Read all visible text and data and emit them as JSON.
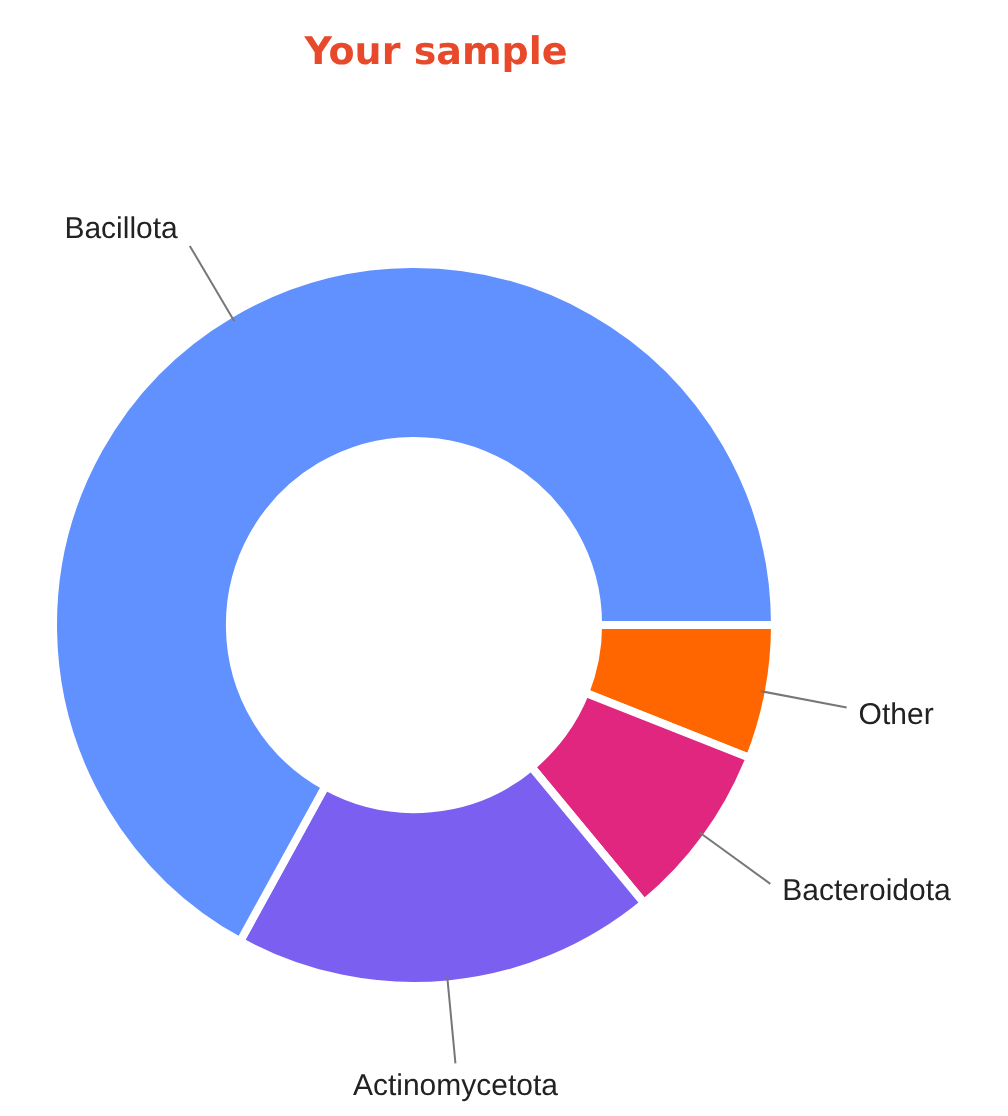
{
  "chart_data": {
    "type": "donut",
    "title": "Your sample",
    "categories": [
      "Other",
      "Bacteroidota",
      "Actinomycetota",
      "Bacillota"
    ],
    "values": [
      6,
      8,
      19,
      67
    ],
    "colors": [
      "#ff6600",
      "#e0267f",
      "#7b5ff0",
      "#6190ff"
    ],
    "legend": false
  }
}
